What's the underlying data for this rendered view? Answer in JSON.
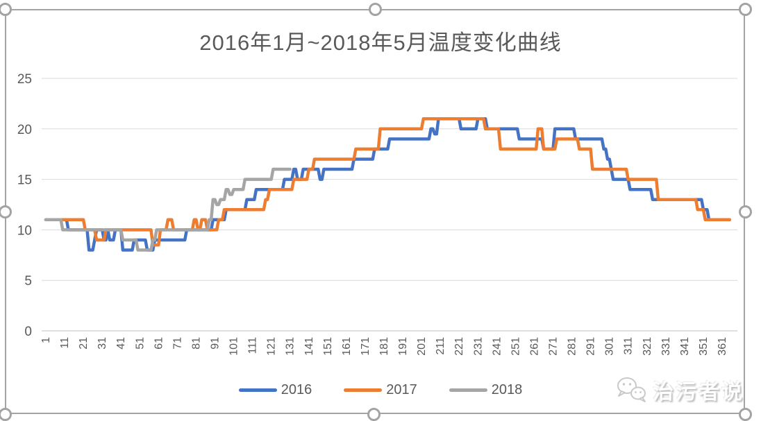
{
  "chart_data": {
    "type": "line",
    "title": "2016年1月~2018年5月温度变化曲线",
    "xlabel": "",
    "ylabel": "",
    "ylim": [
      0,
      25
    ],
    "y_ticks": [
      0,
      5,
      10,
      15,
      20,
      25
    ],
    "x_tick_labels": [
      "1",
      "11",
      "21",
      "31",
      "41",
      "51",
      "61",
      "71",
      "81",
      "91",
      "101",
      "111",
      "121",
      "131",
      "141",
      "151",
      "161",
      "171",
      "181",
      "191",
      "201",
      "211",
      "221",
      "231",
      "241",
      "251",
      "261",
      "271",
      "281",
      "291",
      "301",
      "311",
      "321",
      "331",
      "341",
      "351",
      "361"
    ],
    "x_tick_interval": 10,
    "grid": "horizontal-only",
    "legend_position": "bottom",
    "line_style": "step-daily",
    "series": [
      {
        "name": "2016",
        "color": "#4472C4",
        "end_day": 365,
        "breakpoints": [
          [
            1,
            11
          ],
          [
            13,
            10
          ],
          [
            24,
            8
          ],
          [
            27,
            9
          ],
          [
            28,
            10
          ],
          [
            32,
            9
          ],
          [
            34,
            10
          ],
          [
            35,
            9
          ],
          [
            38,
            10
          ],
          [
            42,
            8
          ],
          [
            48,
            9
          ],
          [
            55,
            8
          ],
          [
            59,
            9
          ],
          [
            76,
            10
          ],
          [
            90,
            11
          ],
          [
            97,
            12
          ],
          [
            108,
            13
          ],
          [
            113,
            14
          ],
          [
            128,
            15
          ],
          [
            133,
            16
          ],
          [
            135,
            15
          ],
          [
            138,
            16
          ],
          [
            147,
            15
          ],
          [
            149,
            16
          ],
          [
            165,
            17
          ],
          [
            176,
            18
          ],
          [
            184,
            19
          ],
          [
            206,
            20
          ],
          [
            208,
            19.5
          ],
          [
            210,
            21
          ],
          [
            222,
            20
          ],
          [
            231,
            21
          ],
          [
            236,
            20
          ],
          [
            253,
            19
          ],
          [
            266,
            18
          ],
          [
            272,
            20
          ],
          [
            283,
            19
          ],
          [
            298,
            18
          ],
          [
            300,
            17
          ],
          [
            302,
            16
          ],
          [
            303,
            15
          ],
          [
            312,
            14
          ],
          [
            324,
            13
          ],
          [
            351,
            12
          ],
          [
            354,
            11
          ]
        ]
      },
      {
        "name": "2017",
        "color": "#ED7D31",
        "end_day": 365,
        "breakpoints": [
          [
            1,
            11
          ],
          [
            22,
            10
          ],
          [
            28,
            9
          ],
          [
            33,
            10
          ],
          [
            58,
            8.5
          ],
          [
            62,
            10
          ],
          [
            66,
            11
          ],
          [
            69,
            10
          ],
          [
            80,
            11
          ],
          [
            82,
            10
          ],
          [
            84,
            11
          ],
          [
            87,
            10
          ],
          [
            93,
            11
          ],
          [
            96,
            12
          ],
          [
            118,
            13
          ],
          [
            120,
            14
          ],
          [
            133,
            15
          ],
          [
            141,
            16
          ],
          [
            144,
            17
          ],
          [
            166,
            18
          ],
          [
            179,
            20
          ],
          [
            202,
            21
          ],
          [
            235,
            20
          ],
          [
            243,
            18
          ],
          [
            263,
            20
          ],
          [
            266,
            18
          ],
          [
            273,
            19
          ],
          [
            285,
            18
          ],
          [
            292,
            16
          ],
          [
            311,
            15
          ],
          [
            327,
            13
          ],
          [
            348,
            12
          ],
          [
            352,
            11
          ]
        ]
      },
      {
        "name": "2018",
        "color": "#A5A5A5",
        "end_day": 131,
        "breakpoints": [
          [
            1,
            11
          ],
          [
            10,
            10
          ],
          [
            42,
            9
          ],
          [
            50,
            8
          ],
          [
            58,
            9
          ],
          [
            60,
            10
          ],
          [
            88,
            11
          ],
          [
            90,
            13
          ],
          [
            92,
            12.5
          ],
          [
            94,
            13
          ],
          [
            97,
            14
          ],
          [
            99,
            13.5
          ],
          [
            101,
            14
          ],
          [
            107,
            15
          ],
          [
            122,
            16
          ]
        ]
      }
    ],
    "axis_text_color": "#595959",
    "gridline_color": "#d9d9d9",
    "axis_line_color": "#bfbfbf"
  },
  "watermark": {
    "text": "治污者说",
    "icon": "wechat-icon"
  }
}
